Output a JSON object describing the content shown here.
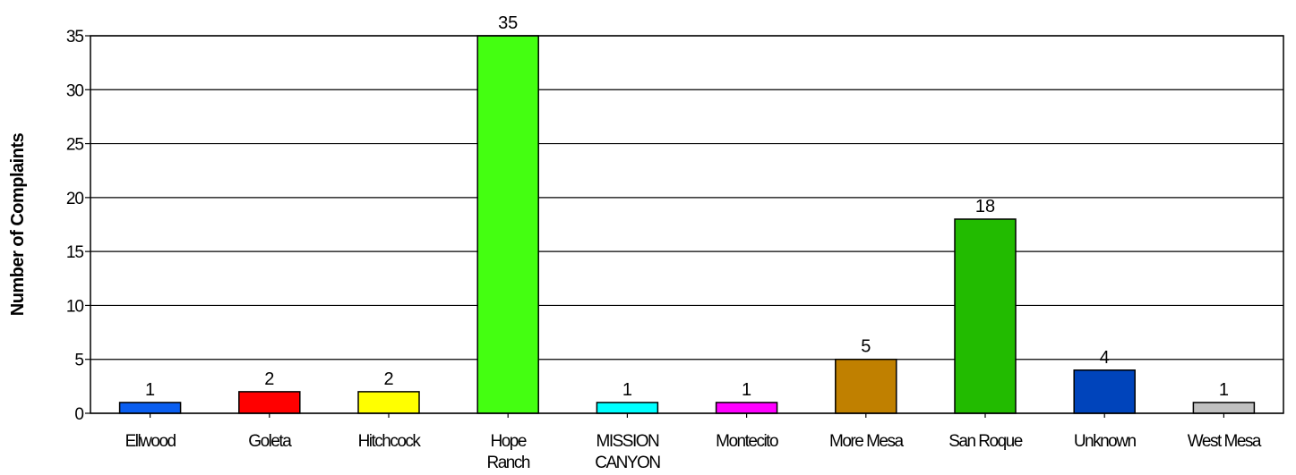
{
  "chart_data": {
    "type": "bar",
    "title": "",
    "xlabel": "",
    "ylabel": "Number of Complaints",
    "ylim": [
      0,
      35
    ],
    "yticks": [
      0,
      5,
      10,
      15,
      20,
      25,
      30,
      35
    ],
    "grid": true,
    "legend": "none",
    "categories": [
      [
        "Ellwood"
      ],
      [
        "Goleta"
      ],
      [
        "Hitchcock"
      ],
      [
        "Hope",
        "Ranch"
      ],
      [
        "MISSION",
        "CANYON"
      ],
      [
        "Montecito"
      ],
      [
        "More Mesa"
      ],
      [
        "San Roque"
      ],
      [
        "Unknown"
      ],
      [
        "West Mesa"
      ]
    ],
    "values": [
      1,
      2,
      2,
      35,
      1,
      1,
      5,
      18,
      4,
      1
    ],
    "colors": [
      "#0a5ef0",
      "#ff0000",
      "#ffff00",
      "#44ff11",
      "#00ffff",
      "#ff00ff",
      "#c08000",
      "#22bb00",
      "#0044bb",
      "#c0c0c0"
    ]
  }
}
